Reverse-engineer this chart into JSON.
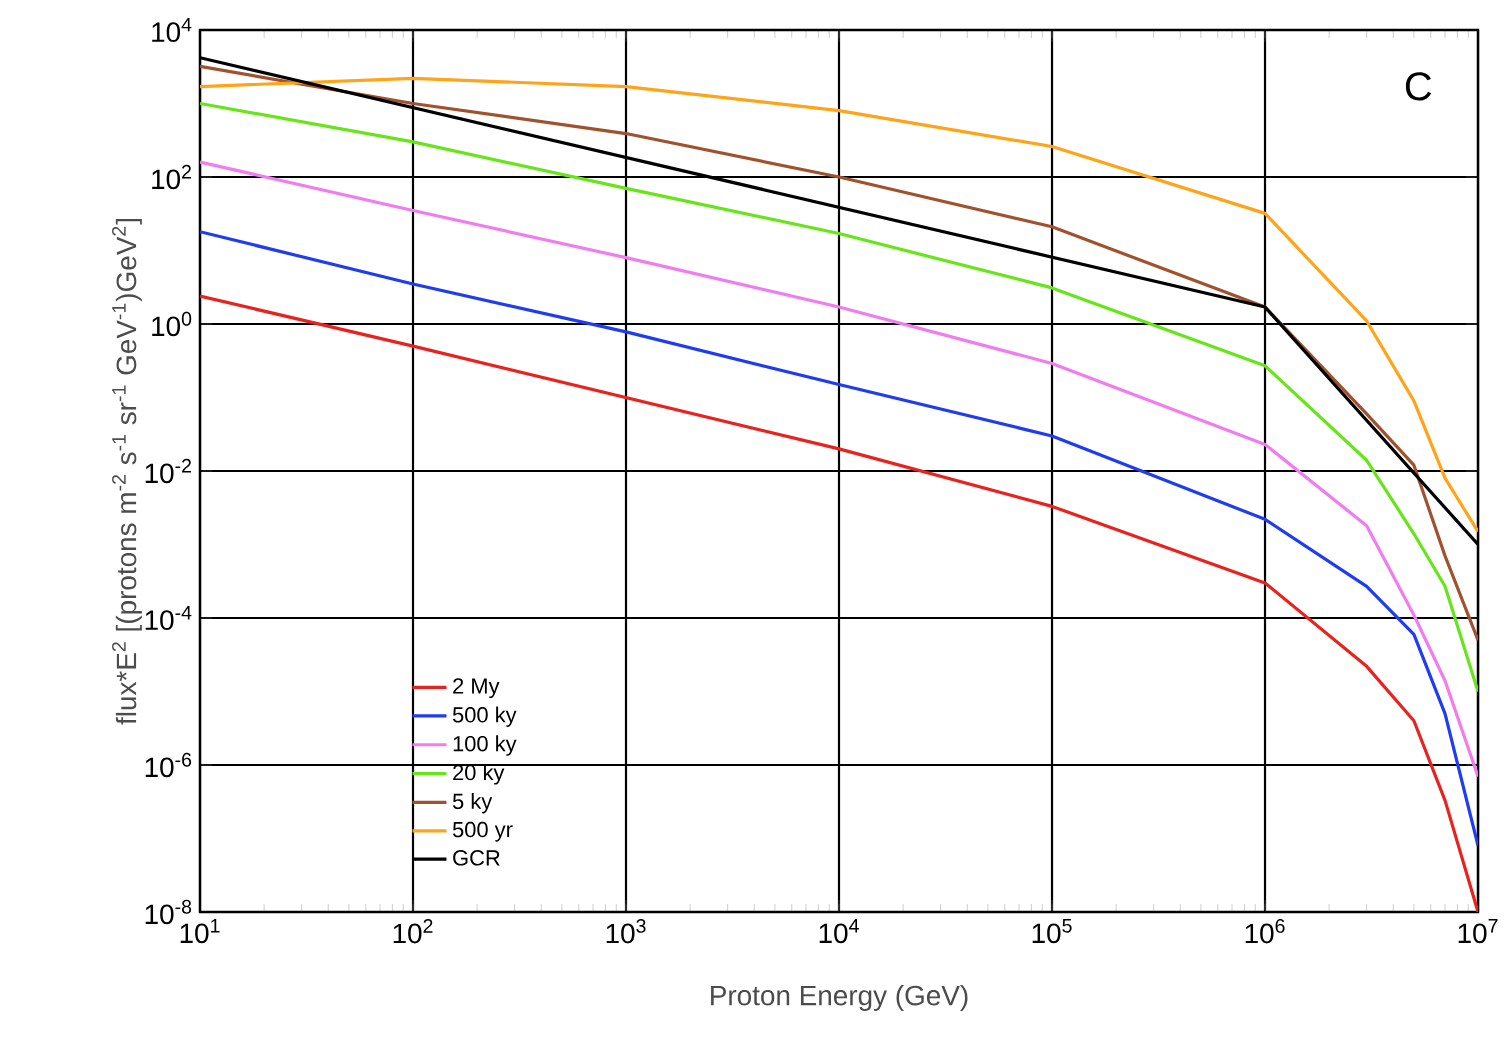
{
  "chart_data": {
    "type": "line",
    "xlabel": "Proton Energy (GeV)",
    "ylabel": "flux*E$^{2}$ [(protons m$^{-2}$ s$^{-1}$ sr$^{-1}$ GeV$^{-1}$)GeV$^{2}$]",
    "annotations": [
      "C"
    ],
    "log": "xy",
    "grid": true,
    "legend": "bottom left",
    "line_style": "solid",
    "xlim": [
      10,
      10000000
    ],
    "ylim": [
      1e-08,
      10000
    ],
    "xticks": [
      {
        "value": 10,
        "label": "10$^{1}$"
      },
      {
        "value": 100,
        "label": "10$^{2}$"
      },
      {
        "value": 1000,
        "label": "10$^{3}$"
      },
      {
        "value": 10000,
        "label": "10$^{4}$"
      },
      {
        "value": 100000,
        "label": "10$^{5}$"
      },
      {
        "value": 1000000,
        "label": "10$^{6}$"
      },
      {
        "value": 10000000,
        "label": "10$^{7}$"
      }
    ],
    "yticks": [
      {
        "value": 1e-08,
        "label": "10$^{-8}$"
      },
      {
        "value": 1e-06,
        "label": "10$^{-6}$"
      },
      {
        "value": 0.0001,
        "label": "10$^{-4}$"
      },
      {
        "value": 0.01,
        "label": "10$^{-2}$"
      },
      {
        "value": 1,
        "label": "10$^{0}$"
      },
      {
        "value": 100,
        "label": "10$^{2}$"
      },
      {
        "value": 10000,
        "label": "10$^{4}$"
      }
    ],
    "x": [
      10,
      100,
      1000,
      10000,
      100000,
      1000000,
      3000000,
      5000000,
      7000000,
      10000000
    ],
    "series": [
      {
        "name": "2 My",
        "color": "#e8231f",
        "values": [
          2.4,
          0.5,
          0.1,
          0.02,
          0.0033,
          0.0003,
          2.2e-05,
          4e-06,
          3.3e-07,
          1e-08
        ]
      },
      {
        "name": "500 ky",
        "color": "#1f3cf0",
        "values": [
          18,
          3.5,
          0.78,
          0.15,
          0.03,
          0.0022,
          0.00027,
          6e-05,
          5e-06,
          8e-08
        ]
      },
      {
        "name": "100 ky",
        "color": "#f07cf0",
        "values": [
          160,
          35,
          8,
          1.7,
          0.29,
          0.023,
          0.0018,
          0.00011,
          1.4e-05,
          7e-07
        ]
      },
      {
        "name": "20 ky",
        "color": "#66e619",
        "values": [
          1000,
          300,
          70,
          17,
          3.1,
          0.27,
          0.014,
          0.0014,
          0.00027,
          1e-05
        ]
      },
      {
        "name": "5 ky",
        "color": "#a0522d",
        "values": [
          3200,
          1000,
          390,
          100,
          21,
          1.7,
          0.06,
          0.012,
          0.0007,
          5e-05
        ]
      },
      {
        "name": "500 yr",
        "color": "#ffa319",
        "values": [
          1700,
          2200,
          1700,
          800,
          260,
          32,
          1.1,
          0.09,
          0.008,
          0.0015
        ]
      },
      {
        "name": "GCR",
        "color": "#000000",
        "x": [
          10,
          1000000,
          10000000
        ],
        "values": [
          4200,
          1.7,
          0.001
        ]
      }
    ]
  }
}
